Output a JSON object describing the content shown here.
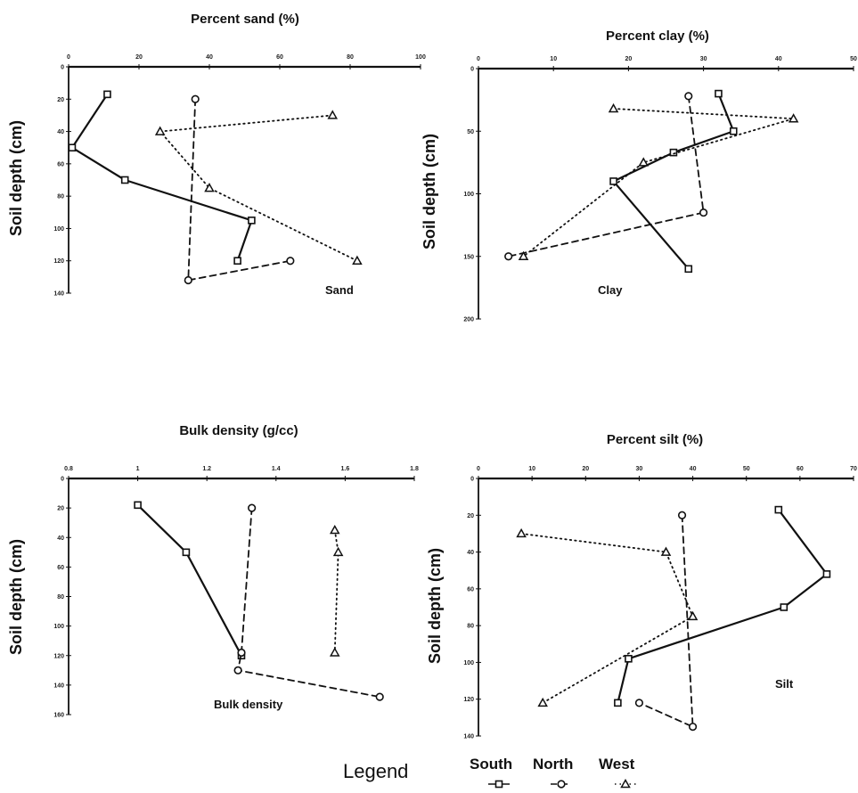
{
  "legend": {
    "title": "Legend",
    "entries": [
      {
        "name": "South",
        "marker": "square",
        "dash": "solid"
      },
      {
        "name": "North",
        "marker": "circle",
        "dash": "dashed"
      },
      {
        "name": "West",
        "marker": "triangle",
        "dash": "dotted"
      }
    ]
  },
  "chart_data": [
    {
      "id": "sand",
      "type": "line",
      "title": "Percent sand (%)",
      "ylabel": "Soil depth (cm)",
      "annotation": "Sand",
      "xlim": [
        0,
        100
      ],
      "ylim": [
        0,
        140
      ],
      "xticks": [
        0,
        20,
        40,
        60,
        80,
        100
      ],
      "xtick_labels": [
        "0",
        "20",
        "40",
        "60",
        "80",
        "100"
      ],
      "yticks": [
        0,
        20,
        40,
        60,
        80,
        100,
        120,
        140
      ],
      "ytick_labels": [
        "0",
        "20",
        "40",
        "60",
        "80",
        "100",
        "120",
        "140"
      ],
      "series": [
        {
          "name": "South",
          "points": [
            [
              11,
              17
            ],
            [
              1,
              50
            ],
            [
              16,
              70
            ],
            [
              52,
              95
            ],
            [
              48,
              120
            ]
          ]
        },
        {
          "name": "North",
          "points": [
            [
              36,
              20
            ],
            [
              34,
              132
            ],
            [
              63,
              120
            ]
          ]
        },
        {
          "name": "West",
          "points": [
            [
              75,
              30
            ],
            [
              26,
              40
            ],
            [
              40,
              75
            ],
            [
              82,
              120
            ]
          ]
        }
      ]
    },
    {
      "id": "clay",
      "type": "line",
      "title": "Percent clay (%)",
      "ylabel": "Soil depth (cm)",
      "annotation": "Clay",
      "xlim": [
        0,
        50
      ],
      "ylim": [
        0,
        200
      ],
      "xticks": [
        0,
        10,
        20,
        30,
        40,
        50
      ],
      "xtick_labels": [
        "0",
        "10",
        "20",
        "30",
        "40",
        "50"
      ],
      "yticks": [
        0,
        50,
        100,
        150,
        200
      ],
      "yticks_labels": [],
      "ytick_labels": [
        "0",
        "50",
        "100",
        "150",
        "200"
      ],
      "series": [
        {
          "name": "South",
          "points": [
            [
              32,
              20
            ],
            [
              34,
              50
            ],
            [
              26,
              67
            ],
            [
              18,
              90
            ],
            [
              28,
              160
            ]
          ]
        },
        {
          "name": "North",
          "points": [
            [
              28,
              22
            ],
            [
              30,
              115
            ],
            [
              4,
              150
            ]
          ]
        },
        {
          "name": "West",
          "points": [
            [
              18,
              32
            ],
            [
              42,
              40
            ],
            [
              22,
              75
            ],
            [
              6,
              150
            ]
          ]
        }
      ]
    },
    {
      "id": "bulk",
      "type": "line",
      "title": "Bulk density (g/cc)",
      "ylabel": "Soil depth (cm)",
      "annotation": "Bulk density",
      "xlim": [
        0.8,
        1.8
      ],
      "ylim": [
        0,
        160
      ],
      "xticks": [
        0.8,
        1.0,
        1.2,
        1.4,
        1.6,
        1.8
      ],
      "xtick_labels": [
        "0.8",
        "1",
        "1.2",
        "1.4",
        "1.6",
        "1.8"
      ],
      "yticks": [
        0,
        20,
        40,
        60,
        80,
        100,
        120,
        140,
        160
      ],
      "ytick_labels": [
        "0",
        "20",
        "40",
        "60",
        "80",
        "100",
        "120",
        "140",
        "160"
      ],
      "series": [
        {
          "name": "South",
          "points": [
            [
              1.0,
              18
            ],
            [
              1.14,
              50
            ],
            [
              1.3,
              120
            ]
          ]
        },
        {
          "name": "North",
          "points": [
            [
              1.33,
              20
            ],
            [
              1.3,
              118
            ],
            [
              1.29,
              130
            ],
            [
              1.7,
              148
            ]
          ]
        },
        {
          "name": "West",
          "points": [
            [
              1.57,
              35
            ],
            [
              1.58,
              50
            ],
            [
              1.57,
              118
            ]
          ]
        }
      ]
    },
    {
      "id": "silt",
      "type": "line",
      "title": "Percent silt (%)",
      "ylabel": "Soil depth (cm)",
      "annotation": "Silt",
      "xlim": [
        0,
        70
      ],
      "ylim": [
        0,
        140
      ],
      "xticks": [
        0,
        10,
        20,
        30,
        40,
        50,
        60,
        70
      ],
      "xtick_labels": [
        "0",
        "10",
        "20",
        "30",
        "40",
        "50",
        "60",
        "70"
      ],
      "yticks": [
        0,
        20,
        40,
        60,
        80,
        100,
        120,
        140
      ],
      "ytick_labels": [
        "0",
        "20",
        "40",
        "60",
        "80",
        "100",
        "120",
        "140"
      ],
      "series": [
        {
          "name": "South",
          "points": [
            [
              56,
              17
            ],
            [
              65,
              52
            ],
            [
              57,
              70
            ],
            [
              28,
              98
            ],
            [
              26,
              122
            ]
          ]
        },
        {
          "name": "North",
          "points": [
            [
              38,
              20
            ],
            [
              40,
              135
            ],
            [
              30,
              122
            ]
          ]
        },
        {
          "name": "West",
          "points": [
            [
              8,
              30
            ],
            [
              35,
              40
            ],
            [
              40,
              75
            ],
            [
              12,
              122
            ]
          ]
        }
      ]
    }
  ]
}
